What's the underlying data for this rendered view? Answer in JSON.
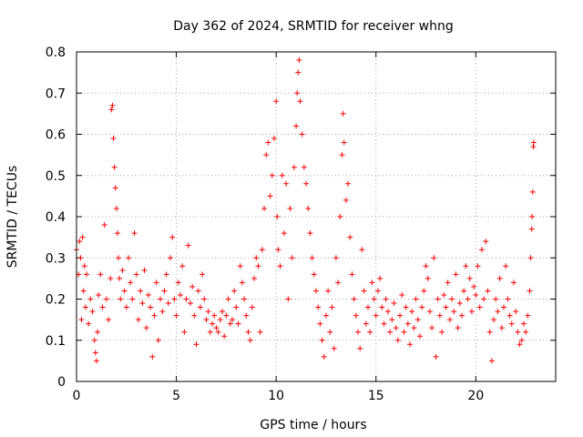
{
  "chart_data": {
    "type": "scatter",
    "title": "Day 362 of 2024, SRMTID for receiver whng",
    "xlabel": "GPS time / hours",
    "ylabel": "SRMTID / TECUs",
    "xlim": [
      0,
      24
    ],
    "ylim": [
      0,
      0.8
    ],
    "x_ticks": [
      0,
      5,
      10,
      15,
      20
    ],
    "x_tick_labels": [
      "0",
      "5",
      "10",
      "15",
      "20"
    ],
    "y_ticks": [
      0,
      0.1,
      0.2,
      0.3,
      0.4,
      0.5,
      0.6,
      0.7,
      0.8
    ],
    "y_tick_labels": [
      "0",
      "0.1",
      "0.2",
      "0.3",
      "0.4",
      "0.5",
      "0.6",
      "0.7",
      "0.8"
    ],
    "grid": true,
    "marker": "+",
    "color": "#ff0000",
    "series": [
      {
        "name": "SRMTID",
        "points": [
          [
            0.0,
            0.32
          ],
          [
            0.1,
            0.26
          ],
          [
            0.15,
            0.34
          ],
          [
            0.2,
            0.3
          ],
          [
            0.25,
            0.15
          ],
          [
            0.3,
            0.35
          ],
          [
            0.35,
            0.22
          ],
          [
            0.4,
            0.28
          ],
          [
            0.45,
            0.18
          ],
          [
            0.5,
            0.26
          ],
          [
            0.6,
            0.14
          ],
          [
            0.7,
            0.2
          ],
          [
            0.8,
            0.17
          ],
          [
            0.9,
            0.1
          ],
          [
            0.95,
            0.07
          ],
          [
            1.0,
            0.05
          ],
          [
            1.05,
            0.12
          ],
          [
            1.1,
            0.21
          ],
          [
            1.2,
            0.26
          ],
          [
            1.3,
            0.18
          ],
          [
            1.4,
            0.38
          ],
          [
            1.5,
            0.2
          ],
          [
            1.6,
            0.15
          ],
          [
            1.7,
            0.25
          ],
          [
            1.75,
            0.66
          ],
          [
            1.8,
            0.67
          ],
          [
            1.85,
            0.59
          ],
          [
            1.9,
            0.52
          ],
          [
            1.95,
            0.47
          ],
          [
            2.0,
            0.42
          ],
          [
            2.05,
            0.36
          ],
          [
            2.1,
            0.3
          ],
          [
            2.15,
            0.25
          ],
          [
            2.2,
            0.2
          ],
          [
            2.3,
            0.27
          ],
          [
            2.4,
            0.22
          ],
          [
            2.5,
            0.18
          ],
          [
            2.6,
            0.3
          ],
          [
            2.7,
            0.24
          ],
          [
            2.8,
            0.2
          ],
          [
            2.9,
            0.36
          ],
          [
            3.0,
            0.26
          ],
          [
            3.1,
            0.15
          ],
          [
            3.2,
            0.22
          ],
          [
            3.3,
            0.19
          ],
          [
            3.4,
            0.27
          ],
          [
            3.5,
            0.13
          ],
          [
            3.6,
            0.21
          ],
          [
            3.7,
            0.18
          ],
          [
            3.8,
            0.06
          ],
          [
            3.9,
            0.16
          ],
          [
            4.0,
            0.24
          ],
          [
            4.1,
            0.1
          ],
          [
            4.2,
            0.2
          ],
          [
            4.3,
            0.17
          ],
          [
            4.4,
            0.22
          ],
          [
            4.5,
            0.26
          ],
          [
            4.6,
            0.19
          ],
          [
            4.7,
            0.3
          ],
          [
            4.8,
            0.35
          ],
          [
            4.9,
            0.2
          ],
          [
            5.0,
            0.16
          ],
          [
            5.1,
            0.24
          ],
          [
            5.2,
            0.21
          ],
          [
            5.3,
            0.28
          ],
          [
            5.4,
            0.12
          ],
          [
            5.5,
            0.2
          ],
          [
            5.6,
            0.33
          ],
          [
            5.7,
            0.19
          ],
          [
            5.8,
            0.23
          ],
          [
            5.9,
            0.16
          ],
          [
            6.0,
            0.09
          ],
          [
            6.1,
            0.22
          ],
          [
            6.2,
            0.18
          ],
          [
            6.3,
            0.26
          ],
          [
            6.4,
            0.2
          ],
          [
            6.5,
            0.15
          ],
          [
            6.6,
            0.17
          ],
          [
            6.7,
            0.12
          ],
          [
            6.8,
            0.14
          ],
          [
            6.9,
            0.16
          ],
          [
            7.0,
            0.13
          ],
          [
            7.1,
            0.12
          ],
          [
            7.2,
            0.15
          ],
          [
            7.3,
            0.17
          ],
          [
            7.4,
            0.11
          ],
          [
            7.5,
            0.16
          ],
          [
            7.6,
            0.2
          ],
          [
            7.7,
            0.14
          ],
          [
            7.8,
            0.15
          ],
          [
            7.9,
            0.22
          ],
          [
            8.0,
            0.18
          ],
          [
            8.1,
            0.14
          ],
          [
            8.2,
            0.28
          ],
          [
            8.3,
            0.24
          ],
          [
            8.4,
            0.2
          ],
          [
            8.5,
            0.16
          ],
          [
            8.6,
            0.12
          ],
          [
            8.7,
            0.1
          ],
          [
            8.8,
            0.18
          ],
          [
            8.9,
            0.25
          ],
          [
            9.0,
            0.3
          ],
          [
            9.1,
            0.28
          ],
          [
            9.2,
            0.12
          ],
          [
            9.3,
            0.32
          ],
          [
            9.4,
            0.42
          ],
          [
            9.5,
            0.55
          ],
          [
            9.6,
            0.58
          ],
          [
            9.7,
            0.45
          ],
          [
            9.8,
            0.5
          ],
          [
            9.9,
            0.59
          ],
          [
            10.0,
            0.68
          ],
          [
            10.05,
            0.4
          ],
          [
            10.1,
            0.32
          ],
          [
            10.2,
            0.28
          ],
          [
            10.3,
            0.5
          ],
          [
            10.4,
            0.36
          ],
          [
            10.5,
            0.48
          ],
          [
            10.6,
            0.2
          ],
          [
            10.7,
            0.42
          ],
          [
            10.8,
            0.3
          ],
          [
            10.9,
            0.52
          ],
          [
            11.0,
            0.62
          ],
          [
            11.05,
            0.7
          ],
          [
            11.1,
            0.75
          ],
          [
            11.15,
            0.78
          ],
          [
            11.2,
            0.68
          ],
          [
            11.3,
            0.6
          ],
          [
            11.4,
            0.52
          ],
          [
            11.5,
            0.48
          ],
          [
            11.6,
            0.42
          ],
          [
            11.7,
            0.36
          ],
          [
            11.8,
            0.3
          ],
          [
            11.9,
            0.26
          ],
          [
            12.0,
            0.22
          ],
          [
            12.1,
            0.18
          ],
          [
            12.2,
            0.14
          ],
          [
            12.3,
            0.1
          ],
          [
            12.4,
            0.06
          ],
          [
            12.5,
            0.16
          ],
          [
            12.6,
            0.22
          ],
          [
            12.7,
            0.12
          ],
          [
            12.8,
            0.18
          ],
          [
            12.9,
            0.08
          ],
          [
            13.0,
            0.3
          ],
          [
            13.1,
            0.24
          ],
          [
            13.2,
            0.4
          ],
          [
            13.3,
            0.55
          ],
          [
            13.35,
            0.65
          ],
          [
            13.4,
            0.58
          ],
          [
            13.5,
            0.44
          ],
          [
            13.6,
            0.48
          ],
          [
            13.7,
            0.35
          ],
          [
            13.8,
            0.26
          ],
          [
            13.9,
            0.2
          ],
          [
            14.0,
            0.16
          ],
          [
            14.1,
            0.12
          ],
          [
            14.2,
            0.08
          ],
          [
            14.3,
            0.32
          ],
          [
            14.4,
            0.22
          ],
          [
            14.5,
            0.14
          ],
          [
            14.6,
            0.18
          ],
          [
            14.7,
            0.12
          ],
          [
            14.8,
            0.24
          ],
          [
            14.9,
            0.2
          ],
          [
            15.0,
            0.16
          ],
          [
            15.1,
            0.22
          ],
          [
            15.2,
            0.25
          ],
          [
            15.3,
            0.18
          ],
          [
            15.4,
            0.14
          ],
          [
            15.5,
            0.2
          ],
          [
            15.6,
            0.17
          ],
          [
            15.7,
            0.12
          ],
          [
            15.8,
            0.15
          ],
          [
            15.9,
            0.19
          ],
          [
            16.0,
            0.13
          ],
          [
            16.1,
            0.1
          ],
          [
            16.2,
            0.16
          ],
          [
            16.3,
            0.21
          ],
          [
            16.4,
            0.12
          ],
          [
            16.5,
            0.18
          ],
          [
            16.6,
            0.14
          ],
          [
            16.7,
            0.09
          ],
          [
            16.8,
            0.17
          ],
          [
            16.9,
            0.13
          ],
          [
            17.0,
            0.2
          ],
          [
            17.1,
            0.15
          ],
          [
            17.2,
            0.11
          ],
          [
            17.3,
            0.18
          ],
          [
            17.4,
            0.22
          ],
          [
            17.5,
            0.28
          ],
          [
            17.6,
            0.25
          ],
          [
            17.7,
            0.17
          ],
          [
            17.8,
            0.13
          ],
          [
            17.9,
            0.3
          ],
          [
            18.0,
            0.06
          ],
          [
            18.1,
            0.2
          ],
          [
            18.2,
            0.16
          ],
          [
            18.3,
            0.12
          ],
          [
            18.4,
            0.21
          ],
          [
            18.5,
            0.18
          ],
          [
            18.6,
            0.24
          ],
          [
            18.7,
            0.15
          ],
          [
            18.8,
            0.2
          ],
          [
            18.9,
            0.17
          ],
          [
            19.0,
            0.26
          ],
          [
            19.1,
            0.13
          ],
          [
            19.2,
            0.19
          ],
          [
            19.3,
            0.16
          ],
          [
            19.4,
            0.22
          ],
          [
            19.5,
            0.28
          ],
          [
            19.6,
            0.2
          ],
          [
            19.7,
            0.25
          ],
          [
            19.8,
            0.17
          ],
          [
            19.9,
            0.23
          ],
          [
            20.0,
            0.21
          ],
          [
            20.1,
            0.28
          ],
          [
            20.2,
            0.18
          ],
          [
            20.3,
            0.32
          ],
          [
            20.4,
            0.2
          ],
          [
            20.5,
            0.34
          ],
          [
            20.6,
            0.22
          ],
          [
            20.7,
            0.12
          ],
          [
            20.8,
            0.05
          ],
          [
            20.9,
            0.15
          ],
          [
            21.0,
            0.2
          ],
          [
            21.1,
            0.17
          ],
          [
            21.2,
            0.25
          ],
          [
            21.3,
            0.13
          ],
          [
            21.4,
            0.18
          ],
          [
            21.5,
            0.28
          ],
          [
            21.6,
            0.2
          ],
          [
            21.7,
            0.16
          ],
          [
            21.8,
            0.14
          ],
          [
            21.9,
            0.24
          ],
          [
            22.0,
            0.17
          ],
          [
            22.1,
            0.12
          ],
          [
            22.2,
            0.09
          ],
          [
            22.3,
            0.1
          ],
          [
            22.4,
            0.14
          ],
          [
            22.5,
            0.12
          ],
          [
            22.6,
            0.16
          ],
          [
            22.7,
            0.22
          ],
          [
            22.75,
            0.3
          ],
          [
            22.8,
            0.37
          ],
          [
            22.82,
            0.4
          ],
          [
            22.85,
            0.46
          ],
          [
            22.88,
            0.57
          ],
          [
            22.9,
            0.58
          ]
        ]
      }
    ]
  }
}
